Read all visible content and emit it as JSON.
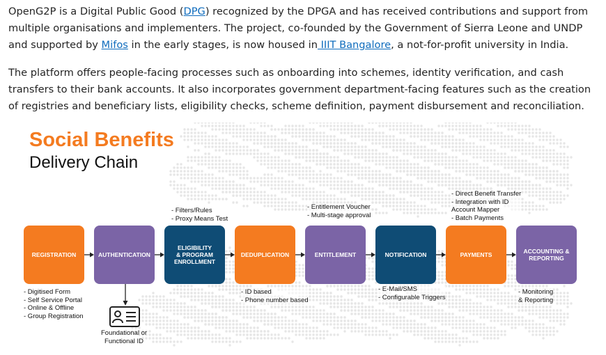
{
  "paragraph1": {
    "t1": "OpenG2P is a Digital Public Good (",
    "link_dpg": "DPG",
    "t2": ") recognized by the DPGA and has received contributions and support from multiple organisations and implementers. The project, co-founded by the Government of Sierra Leone and UNDP and supported by ",
    "link_mifos": "Mifos",
    "t3": " in the early stages, is now housed in",
    "link_iiit": " IIIT Bangalore",
    "t4": ", a not-for-profit university in India."
  },
  "paragraph2": "The platform offers people-facing processes such as onboarding into schemes, identity verification, and cash transfers to their bank accounts. It also incorporates government department-facing features such as the creation of registries and beneficiary lists, eligibility checks, scheme definition, payment disbursement and reconciliation.",
  "figure": {
    "title_line1": "Social Benefits",
    "title_line2": "Delivery Chain",
    "colors": {
      "orange": "#f47b20",
      "purple": "#7b64a6",
      "navy": "#0f4c75"
    },
    "steps": [
      {
        "label": "REGISTRATION",
        "color": "orange"
      },
      {
        "label": "AUTHENTICATION",
        "color": "purple"
      },
      {
        "label": "ELIGIBILITY\n& PROGRAM\nENROLLMENT",
        "color": "navy"
      },
      {
        "label": "DEDUPLICATION",
        "color": "orange"
      },
      {
        "label": "ENTITLEMENT",
        "color": "purple"
      },
      {
        "label": "NOTIFICATION",
        "color": "navy"
      },
      {
        "label": "PAYMENTS",
        "color": "orange"
      },
      {
        "label": "ACCOUNTING &\nREPORTING",
        "color": "purple"
      }
    ],
    "notes": {
      "registration": "- Digitised Form\n- Self Service Portal\n- Online & Offline\n- Group Registration",
      "eligibility": "- Filters/Rules\n- Proxy Means Test",
      "deduplication": "- ID based\n- Phone number based",
      "entitlement": "- Entitlement Voucher\n- Multi-stage approval",
      "notification": "- E-Mail/SMS\n- Configurable Triggers",
      "payments": "- Direct Benefit Transfer\n- Integration with ID\n  Account Mapper\n- Batch Payments",
      "accounting": "- Monitoring\n& Reporting",
      "authentication": "Foundational or\nFunctional ID"
    },
    "icons": {
      "authentication": "id-card-icon",
      "flow": "arrow-right-icon"
    }
  }
}
